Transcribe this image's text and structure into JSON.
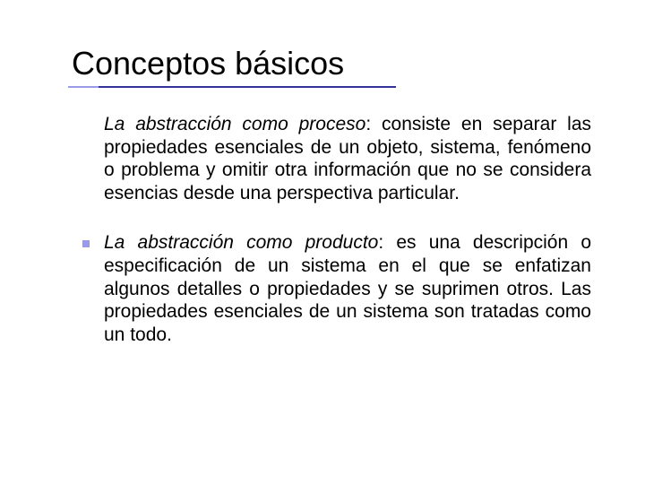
{
  "colors": {
    "text": "#000000",
    "underline_accent": "#9a9ae6",
    "underline_main": "#333399",
    "bullet": "#9a9ae6",
    "background": "#ffffff"
  },
  "typography": {
    "title_fontsize": 36,
    "body_fontsize": 21,
    "font_family": "Verdana"
  },
  "layout": {
    "slide_width": 720,
    "slide_height": 540,
    "underline_short_width": 34,
    "underline_long_width": 332,
    "bullet_size": 8
  },
  "title": "Conceptos básicos",
  "paragraphs": [
    {
      "has_bullet": false,
      "lead_italic": "La abstracción como proceso",
      "rest": ": consiste en separar las propiedades esenciales de un objeto, sistema, fenómeno o problema y omitir otra información que no se considera esencias desde una perspectiva particular."
    },
    {
      "has_bullet": true,
      "lead_italic": "La abstracción como producto",
      "rest": ": es una descripción o especificación de un sistema en el que se enfatizan algunos detalles o propiedades y se suprimen otros. Las propiedades esenciales de un sistema son tratadas como un todo."
    }
  ]
}
